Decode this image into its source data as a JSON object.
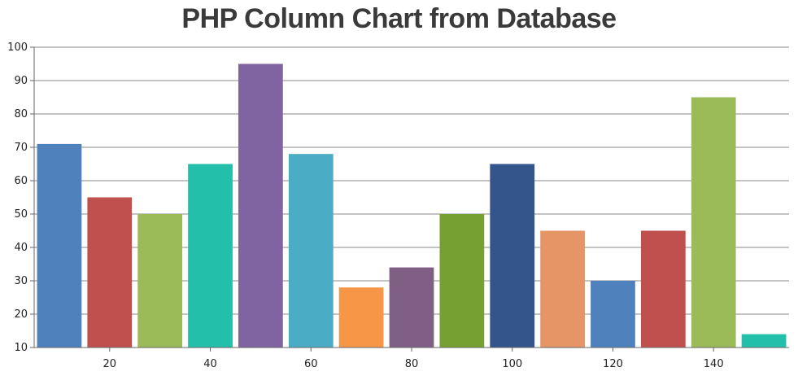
{
  "chart_data": {
    "type": "bar",
    "title": "PHP Column Chart from Database",
    "xlabel": "",
    "ylabel": "",
    "x": [
      10,
      20,
      30,
      40,
      50,
      60,
      70,
      80,
      90,
      100,
      110,
      120,
      130,
      140,
      150
    ],
    "values": [
      71,
      55,
      50,
      65,
      95,
      68,
      28,
      34,
      50,
      65,
      45,
      30,
      45,
      85,
      14
    ],
    "colors": [
      "#4F81BC",
      "#C0504E",
      "#9BBB58",
      "#23BFAA",
      "#8064A1",
      "#4AACC5",
      "#F79647",
      "#7F6084",
      "#77A033",
      "#33558B",
      "#E59566",
      "#4F81BC",
      "#C0504E",
      "#9BBB58",
      "#23BFAA"
    ],
    "ylim": [
      10,
      100
    ],
    "xlim": [
      5,
      155
    ],
    "y_ticks": [
      10,
      20,
      30,
      40,
      50,
      60,
      70,
      80,
      90,
      100
    ],
    "x_ticks": [
      20,
      40,
      60,
      80,
      100,
      120,
      140
    ],
    "grid": true,
    "legend": "none",
    "gridline_color": "#888888",
    "axis_color": "#666666"
  }
}
